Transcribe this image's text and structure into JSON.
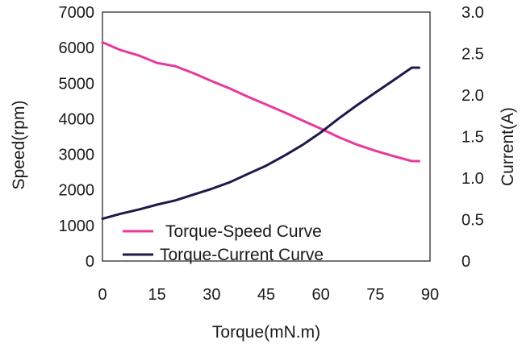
{
  "chart_data": {
    "type": "line",
    "xlabel": "Torque(mN.m)",
    "ylabel_left": "Speed(rpm)",
    "ylabel_right": "Current(A)",
    "xlim": [
      0,
      90
    ],
    "ylim_left": [
      0,
      7000
    ],
    "ylim_right": [
      0,
      3.0
    ],
    "x_ticks": [
      "0",
      "15",
      "30",
      "45",
      "60",
      "75",
      "90"
    ],
    "y_left_ticks": [
      "0",
      "1000",
      "2000",
      "3000",
      "4000",
      "5000",
      "6000",
      "7000"
    ],
    "y_right_ticks": [
      "0",
      "0.5",
      "1.0",
      "1.5",
      "2.0",
      "2.5",
      "3.0"
    ],
    "grid": false,
    "legend_placement": "bottom-left",
    "series": [
      {
        "name": "Torque-Speed Curve",
        "axis": "left",
        "color": "#e8399a",
        "x": [
          0,
          5,
          10,
          15,
          20,
          25,
          30,
          35,
          40,
          45,
          50,
          55,
          60,
          65,
          70,
          75,
          80,
          85,
          87
        ],
        "y": [
          6150,
          5930,
          5780,
          5570,
          5480,
          5280,
          5060,
          4850,
          4620,
          4400,
          4180,
          3950,
          3720,
          3480,
          3270,
          3100,
          2950,
          2810,
          2810
        ]
      },
      {
        "name": "Torque-Current Curve",
        "axis": "right",
        "color": "#1b1a4a",
        "x": [
          0,
          5,
          10,
          15,
          20,
          25,
          30,
          35,
          40,
          45,
          50,
          55,
          60,
          65,
          70,
          75,
          80,
          85,
          87
        ],
        "y": [
          0.51,
          0.57,
          0.62,
          0.68,
          0.73,
          0.8,
          0.87,
          0.95,
          1.05,
          1.15,
          1.27,
          1.4,
          1.55,
          1.72,
          1.88,
          2.03,
          2.18,
          2.33,
          2.33
        ]
      }
    ]
  }
}
